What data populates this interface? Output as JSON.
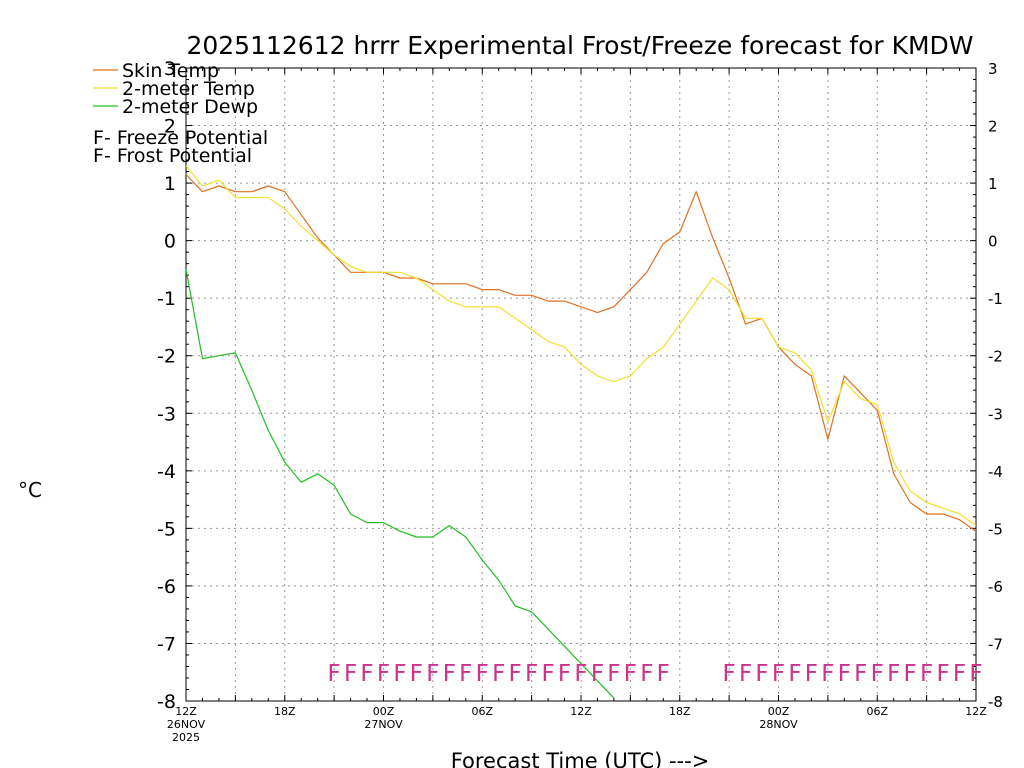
{
  "chart_data": {
    "type": "line",
    "title": "2025112612 hrrr Experimental Frost/Freeze forecast for KMDW",
    "ylabel": "°C",
    "xlabel": "Forecast Time (UTC) --->",
    "ylim": [
      -8,
      3
    ],
    "yticks": [
      -8,
      -7,
      -6,
      -5,
      -4,
      -3,
      -2,
      -1,
      0,
      1,
      2,
      3
    ],
    "xlim": [
      0,
      48
    ],
    "grid": true,
    "x_ticks": [
      {
        "hour": 0,
        "lines": [
          "12Z",
          "26NOV",
          "2025"
        ]
      },
      {
        "hour": 6,
        "lines": [
          "18Z"
        ]
      },
      {
        "hour": 12,
        "lines": [
          "00Z",
          "27NOV"
        ]
      },
      {
        "hour": 18,
        "lines": [
          "06Z"
        ]
      },
      {
        "hour": 24,
        "lines": [
          "12Z"
        ]
      },
      {
        "hour": 30,
        "lines": [
          "18Z"
        ]
      },
      {
        "hour": 36,
        "lines": [
          "00Z",
          "28NOV"
        ]
      },
      {
        "hour": 42,
        "lines": [
          "06Z"
        ]
      },
      {
        "hour": 48,
        "lines": [
          "12Z"
        ]
      }
    ],
    "series": [
      {
        "name": "Skin Temp",
        "color": "#e07020",
        "x": [
          0,
          1,
          2,
          3,
          4,
          5,
          6,
          7,
          8,
          9,
          10,
          11,
          12,
          13,
          14,
          15,
          16,
          17,
          18,
          19,
          20,
          21,
          22,
          23,
          24,
          25,
          26,
          27,
          28,
          29,
          30,
          31,
          32,
          33,
          34,
          35,
          36,
          37,
          38,
          39,
          40,
          41,
          42,
          43,
          44,
          45,
          46,
          47,
          48
        ],
        "y": [
          1.15,
          0.85,
          0.95,
          0.85,
          0.85,
          0.95,
          0.85,
          0.45,
          0.05,
          -0.25,
          -0.55,
          -0.55,
          -0.55,
          -0.65,
          -0.65,
          -0.75,
          -0.75,
          -0.75,
          -0.85,
          -0.85,
          -0.95,
          -0.95,
          -1.05,
          -1.05,
          -1.15,
          -1.25,
          -1.15,
          -0.85,
          -0.55,
          -0.05,
          0.15,
          0.85,
          0.05,
          -0.65,
          -1.45,
          -1.35,
          -1.85,
          -2.15,
          -2.35,
          -3.45,
          -2.35,
          -2.65,
          -2.95,
          -4.05,
          -4.55,
          -4.75,
          -4.75,
          -4.85,
          -5.05
        ]
      },
      {
        "name": "2-meter Temp",
        "color": "#f0e030",
        "x": [
          0,
          1,
          2,
          3,
          4,
          5,
          6,
          7,
          8,
          9,
          10,
          11,
          12,
          13,
          14,
          15,
          16,
          17,
          18,
          19,
          20,
          21,
          22,
          23,
          24,
          25,
          26,
          27,
          28,
          29,
          30,
          31,
          32,
          33,
          34,
          35,
          36,
          37,
          38,
          39,
          40,
          41,
          42,
          43,
          44,
          45,
          46,
          47,
          48
        ],
        "y": [
          1.3,
          0.95,
          1.05,
          0.75,
          0.75,
          0.75,
          0.55,
          0.25,
          0.0,
          -0.25,
          -0.45,
          -0.55,
          -0.55,
          -0.55,
          -0.65,
          -0.85,
          -1.05,
          -1.15,
          -1.15,
          -1.15,
          -1.35,
          -1.55,
          -1.75,
          -1.85,
          -2.15,
          -2.35,
          -2.45,
          -2.35,
          -2.05,
          -1.85,
          -1.45,
          -1.05,
          -0.65,
          -0.85,
          -1.35,
          -1.35,
          -1.85,
          -1.95,
          -2.25,
          -3.15,
          -2.45,
          -2.75,
          -2.85,
          -3.85,
          -4.35,
          -4.55,
          -4.65,
          -4.75,
          -4.95
        ]
      },
      {
        "name": "2-meter Dewp",
        "color": "#20c020",
        "x": [
          0,
          1,
          2,
          3,
          4,
          5,
          6,
          7,
          8,
          9,
          10,
          11,
          12,
          13,
          14,
          15,
          16,
          17,
          18,
          19,
          20,
          21,
          22,
          23,
          24,
          25,
          26
        ],
        "y": [
          -0.5,
          -2.05,
          -2.0,
          -1.95,
          -2.6,
          -3.3,
          -3.85,
          -4.2,
          -4.05,
          -4.25,
          -4.75,
          -4.9,
          -4.9,
          -5.05,
          -5.15,
          -5.15,
          -4.95,
          -5.15,
          -5.55,
          -5.9,
          -6.35,
          -6.45,
          -6.75,
          -7.05,
          -7.35,
          -7.65,
          -7.95
        ]
      }
    ],
    "legend": [
      {
        "label": "Skin Temp",
        "color": "#e07020"
      },
      {
        "label": "2-meter Temp",
        "color": "#f0e030"
      },
      {
        "label": "2-meter Dewp",
        "color": "#20c020"
      }
    ],
    "potential_legend": [
      {
        "mark": "F",
        "label": " - Freeze Potential",
        "color": "#d0308a"
      },
      {
        "mark": "F",
        "label": " - Frost Potential",
        "color": "#5050d0"
      }
    ],
    "freeze_markers": {
      "symbol": "F",
      "color": "#d0308a",
      "value": -7.5,
      "hours": [
        9,
        10,
        11,
        12,
        13,
        14,
        15,
        16,
        17,
        18,
        19,
        20,
        21,
        22,
        23,
        24,
        25,
        26,
        27,
        28,
        29,
        33,
        34,
        35,
        36,
        37,
        38,
        39,
        40,
        41,
        42,
        43,
        44,
        45,
        46,
        47,
        48
      ]
    }
  }
}
